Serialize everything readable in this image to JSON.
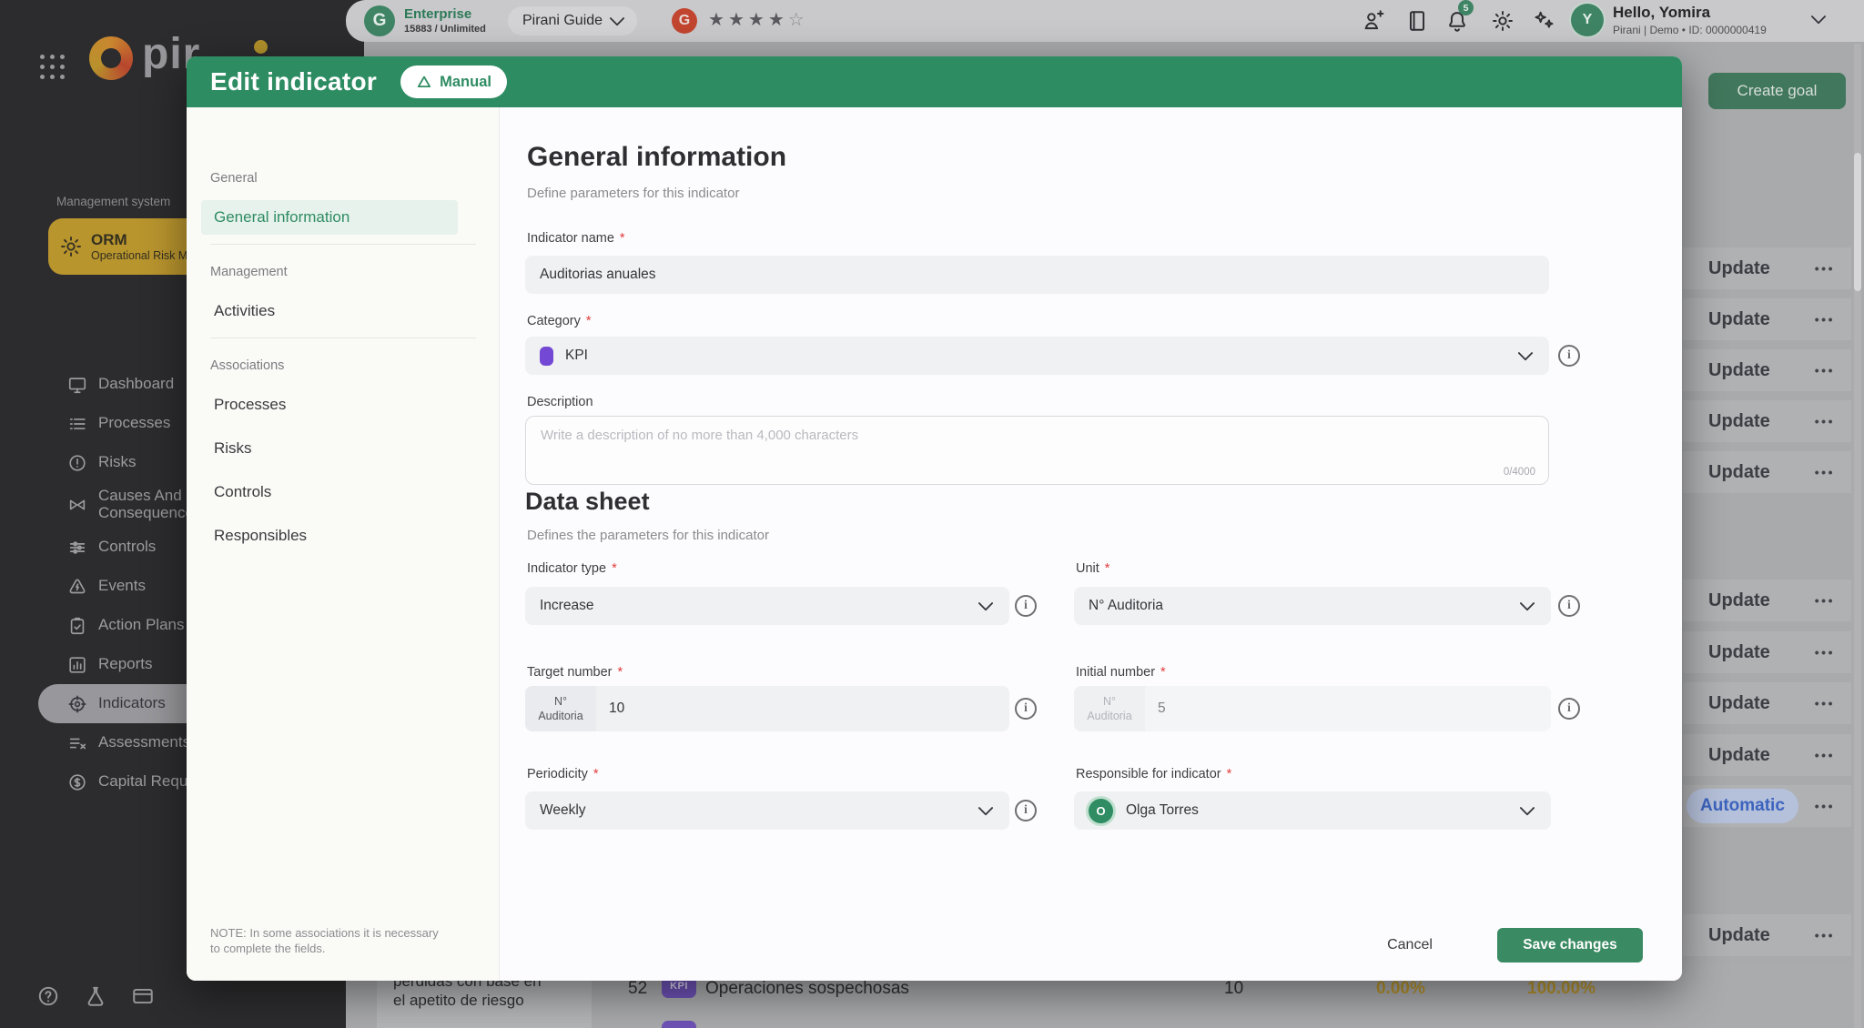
{
  "topbar": {
    "enterprise_name": "Enterprise",
    "enterprise_usage": "15883 / Unlimited",
    "enterprise_logo_letter": "G",
    "guide_label": "Pirani Guide",
    "rating_filled": 4,
    "rating_empty": 1,
    "g2_letter": "G",
    "notification_count": "5",
    "user_greeting": "Hello, Yomira",
    "user_meta": "Pirani | Demo • ID: 0000000419",
    "avatar_initial": "Y",
    "create_goal_label": "Create goal"
  },
  "sidebar": {
    "brand_text": "pir",
    "section_label": "Management system",
    "module_abbr": "ORM",
    "module_full": "Operational Risk Ma",
    "active_item": "Indicators",
    "items": [
      {
        "label": "Dashboard",
        "icon": "monitor"
      },
      {
        "label": "Processes",
        "icon": "list"
      },
      {
        "label": "Risks",
        "icon": "alert-circle"
      },
      {
        "label": "Causes And Consequences",
        "icon": "bowtie",
        "two_line": true
      },
      {
        "label": "Controls",
        "icon": "sliders"
      },
      {
        "label": "Events",
        "icon": "zap-triangle"
      },
      {
        "label": "Action Plans",
        "icon": "clipboard-check"
      },
      {
        "label": "Reports",
        "icon": "bar-chart"
      },
      {
        "label": "Indicators",
        "icon": "target"
      },
      {
        "label": "Assessments",
        "icon": "checklist"
      },
      {
        "label": "Capital Requer",
        "icon": "dollar-circle"
      }
    ]
  },
  "modal": {
    "title": "Edit indicator",
    "badge_label": "Manual",
    "nav": {
      "sections": [
        {
          "label": "General",
          "items": [
            {
              "label": "General information",
              "active": true
            }
          ]
        },
        {
          "label": "Management",
          "items": [
            {
              "label": "Activities"
            }
          ]
        },
        {
          "label": "Associations",
          "items": [
            {
              "label": "Processes"
            },
            {
              "label": "Risks"
            },
            {
              "label": "Controls"
            },
            {
              "label": "Responsibles"
            }
          ]
        }
      ],
      "note": "NOTE: In some associations it is necessary to complete the fields."
    },
    "general": {
      "heading": "General information",
      "subheading": "Define parameters for this indicator",
      "indicator_name_label": "Indicator name",
      "indicator_name_value": "Auditorias anuales",
      "category_label": "Category",
      "category_value": "KPI",
      "description_label": "Description",
      "description_placeholder": "Write a description of no more than 4,000 characters",
      "description_counter": "0/4000"
    },
    "data_sheet": {
      "heading": "Data sheet",
      "subheading": "Defines the parameters for this indicator",
      "indicator_type_label": "Indicator type",
      "indicator_type_value": "Increase",
      "unit_label": "Unit",
      "unit_value": "N° Auditoria",
      "target_label": "Target number",
      "target_prefix_line1": "N°",
      "target_prefix_line2": "Auditoria",
      "target_value": "10",
      "initial_label": "Initial number",
      "initial_prefix_line1": "N°",
      "initial_prefix_line2": "Auditoria",
      "initial_value": "5",
      "periodicity_label": "Periodicity",
      "periodicity_value": "Weekly",
      "responsible_label": "Responsible for indicator",
      "responsible_value": "Olga Torres",
      "responsible_initial": "O"
    },
    "footer": {
      "cancel_label": "Cancel",
      "save_label": "Save changes"
    }
  },
  "background": {
    "update_label": "Update",
    "automatic_label": "Automatic",
    "bottom_row": {
      "left_cell_text_line1": "pérdidas con base en",
      "left_cell_text_line2": "el apetito de riesgo",
      "id": "52",
      "badge": "KPI",
      "name": "Operaciones sospechosas",
      "value": "10",
      "pct1": "0.00%",
      "pct2": "100.00%"
    }
  },
  "colors": {
    "accent_green": "#2E8C62",
    "save_green": "#3A8A63",
    "kpi_purple": "#7348D4",
    "gold": "#B8952E",
    "automatic_blue": "#3C63BE",
    "orm_gold": "#B9952E"
  }
}
